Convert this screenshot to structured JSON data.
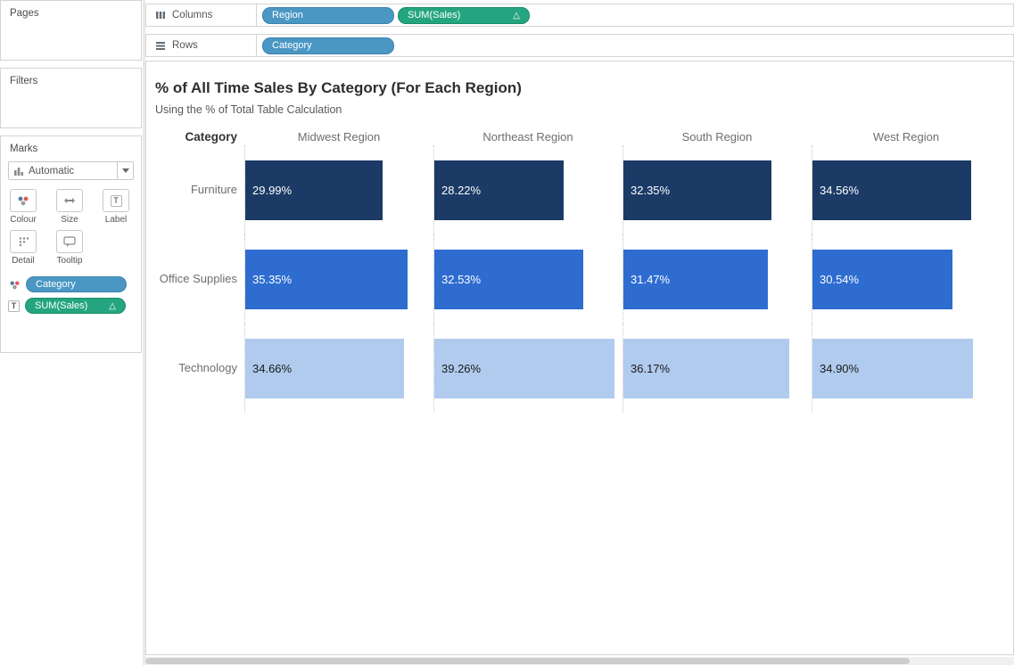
{
  "colors": {
    "dimension_pill": "#4a97c4",
    "dimension_pill_border": "#3d83ad",
    "measure_pill": "#24a57f",
    "measure_pill_border": "#1b8c6a",
    "bar_furniture": "#1b3a66",
    "bar_office_supplies": "#2e6cd0",
    "bar_technology": "#b0cbee"
  },
  "icons": {
    "label_glyph": "T",
    "tooltip_label_glyph": "T"
  },
  "left_panel": {
    "pages_title": "Pages",
    "filters_title": "Filters",
    "marks": {
      "title": "Marks",
      "mark_type": "Automatic",
      "buttons": {
        "colour": "Colour",
        "size": "Size",
        "label": "Label",
        "detail": "Detail",
        "tooltip": "Tooltip"
      },
      "pills": [
        {
          "label": "Category",
          "type": "dimension"
        },
        {
          "label": "SUM(Sales)",
          "type": "measure",
          "delta": "△"
        }
      ]
    }
  },
  "shelves": {
    "columns": {
      "label": "Columns",
      "pills": [
        {
          "label": "Region",
          "type": "dimension"
        },
        {
          "label": "SUM(Sales)",
          "type": "measure",
          "delta": "△"
        }
      ]
    },
    "rows": {
      "label": "Rows",
      "pills": [
        {
          "label": "Category",
          "type": "dimension"
        }
      ]
    }
  },
  "chart_data": {
    "type": "bar",
    "title": "% of All Time Sales By Category (For Each Region)",
    "subtitle": "Using the % of Total Table Calculation",
    "row_header": "Category",
    "columns": [
      "Midwest Region",
      "Northeast Region",
      "South Region",
      "West Region"
    ],
    "rows": [
      {
        "category": "Furniture",
        "values": [
          "29.99%",
          "28.22%",
          "32.35%",
          "34.56%"
        ],
        "numeric": [
          29.99,
          28.22,
          32.35,
          34.56
        ],
        "bar_color": "#1b3a66",
        "label_color": "#ffffff"
      },
      {
        "category": "Office Supplies",
        "values": [
          "35.35%",
          "32.53%",
          "31.47%",
          "30.54%"
        ],
        "numeric": [
          35.35,
          32.53,
          31.47,
          30.54
        ],
        "bar_color": "#2e6cd0",
        "label_color": "#ffffff"
      },
      {
        "category": "Technology",
        "values": [
          "34.66%",
          "39.26%",
          "36.17%",
          "34.90%"
        ],
        "numeric": [
          34.66,
          39.26,
          36.17,
          34.9
        ],
        "bar_color": "#b0cbee",
        "label_color": "#1a1a1a"
      }
    ],
    "xmax": 41,
    "unit": "%",
    "xlabel": "",
    "ylabel": "",
    "legend": "none",
    "grid": "dotted-column-separators"
  }
}
